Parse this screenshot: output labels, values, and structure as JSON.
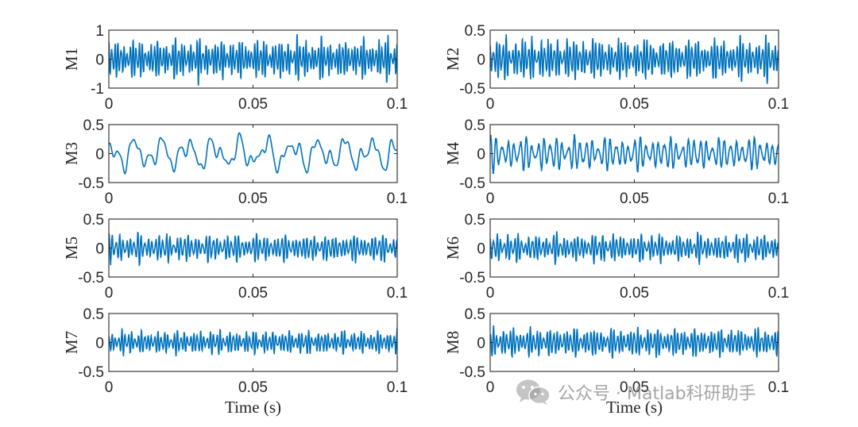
{
  "chart_data": [
    {
      "type": "line",
      "ylabel": "M1",
      "ylim": [
        -1,
        1
      ],
      "yticks": [
        -1,
        0,
        1
      ],
      "ytick_labels": [
        "-1",
        "0",
        "1"
      ],
      "xlim": [
        0,
        0.1
      ],
      "xticks": [
        0,
        0.05,
        0.1
      ],
      "xtick_labels": [
        "0",
        "0.05",
        "0.1"
      ],
      "xlabel": "",
      "series": [
        {
          "name": "M1",
          "color": "#0072BD",
          "amplitude": 0.85,
          "character": "high-frequency amplitude-modulated oscillation"
        }
      ]
    },
    {
      "type": "line",
      "ylabel": "M2",
      "ylim": [
        -0.5,
        0.5
      ],
      "yticks": [
        -0.5,
        0,
        0.5
      ],
      "ytick_labels": [
        "-0.5",
        "0",
        "0.5"
      ],
      "xlim": [
        0,
        0.1
      ],
      "xticks": [
        0,
        0.05,
        0.1
      ],
      "xtick_labels": [
        "0",
        "0.05",
        "0.1"
      ],
      "xlabel": "",
      "series": [
        {
          "name": "M2",
          "color": "#0072BD",
          "amplitude": 0.45,
          "character": "high-frequency amplitude-modulated oscillation"
        }
      ]
    },
    {
      "type": "line",
      "ylabel": "M3",
      "ylim": [
        -0.5,
        0.5
      ],
      "yticks": [
        -0.5,
        0,
        0.5
      ],
      "ytick_labels": [
        "-0.5",
        "0",
        "0.5"
      ],
      "xlim": [
        0,
        0.1
      ],
      "xticks": [
        0,
        0.05,
        0.1
      ],
      "xtick_labels": [
        "0",
        "0.05",
        "0.1"
      ],
      "xlabel": "",
      "series": [
        {
          "name": "M3",
          "color": "#0072BD",
          "amplitude": 0.35,
          "character": "low-frequency oscillation"
        }
      ]
    },
    {
      "type": "line",
      "ylabel": "M4",
      "ylim": [
        -0.5,
        0.5
      ],
      "yticks": [
        -0.5,
        0,
        0.5
      ],
      "ytick_labels": [
        "-0.5",
        "0",
        "0.5"
      ],
      "xlim": [
        0,
        0.1
      ],
      "xticks": [
        0,
        0.05,
        0.1
      ],
      "xtick_labels": [
        "0",
        "0.05",
        "0.1"
      ],
      "xlabel": "",
      "series": [
        {
          "name": "M4",
          "color": "#0072BD",
          "amplitude": 0.38,
          "character": "mid-frequency amplitude-modulated oscillation"
        }
      ]
    },
    {
      "type": "line",
      "ylabel": "M5",
      "ylim": [
        -0.5,
        0.5
      ],
      "yticks": [
        -0.5,
        0,
        0.5
      ],
      "ytick_labels": [
        "-0.5",
        "0",
        "0.5"
      ],
      "xlim": [
        0,
        0.1
      ],
      "xticks": [
        0,
        0.05,
        0.1
      ],
      "xtick_labels": [
        "0",
        "0.05",
        "0.1"
      ],
      "xlabel": "",
      "series": [
        {
          "name": "M5",
          "color": "#0072BD",
          "amplitude": 0.3,
          "character": "high-frequency amplitude-modulated oscillation"
        }
      ]
    },
    {
      "type": "line",
      "ylabel": "M6",
      "ylim": [
        -0.5,
        0.5
      ],
      "yticks": [
        -0.5,
        0,
        0.5
      ],
      "ytick_labels": [
        "-0.5",
        "0",
        "0.5"
      ],
      "xlim": [
        0,
        0.1
      ],
      "xticks": [
        0,
        0.05,
        0.1
      ],
      "xtick_labels": [
        "0",
        "0.05",
        "0.1"
      ],
      "xlabel": "",
      "series": [
        {
          "name": "M6",
          "color": "#0072BD",
          "amplitude": 0.3,
          "character": "high-frequency amplitude-modulated oscillation"
        }
      ]
    },
    {
      "type": "line",
      "ylabel": "M7",
      "ylim": [
        -0.5,
        0.5
      ],
      "yticks": [
        -0.5,
        0,
        0.5
      ],
      "ytick_labels": [
        "-0.5",
        "0",
        "0.5"
      ],
      "xlim": [
        0,
        0.1
      ],
      "xticks": [
        0,
        0.05,
        0.1
      ],
      "xtick_labels": [
        "0",
        "0.05",
        "0.1"
      ],
      "xlabel": "Time (s)",
      "series": [
        {
          "name": "M7",
          "color": "#0072BD",
          "amplitude": 0.25,
          "character": "high-frequency amplitude-modulated oscillation"
        }
      ]
    },
    {
      "type": "line",
      "ylabel": "M8",
      "ylim": [
        -0.5,
        0.5
      ],
      "yticks": [
        -0.5,
        0,
        0.5
      ],
      "ytick_labels": [
        "-0.5",
        "0",
        "0.5"
      ],
      "xlim": [
        0,
        0.1
      ],
      "xticks": [
        0,
        0.05,
        0.1
      ],
      "xtick_labels": [
        "0",
        "0.05",
        "0.1"
      ],
      "xlabel": "Time (s)",
      "series": [
        {
          "name": "M8",
          "color": "#0072BD",
          "amplitude": 0.32,
          "character": "high-frequency amplitude-modulated oscillation"
        }
      ]
    }
  ],
  "watermark": {
    "text": "公众号 · Matlab科研助手",
    "icon": "wechat-icon"
  },
  "colors": {
    "line": "#0072BD",
    "axis": "#262626"
  }
}
